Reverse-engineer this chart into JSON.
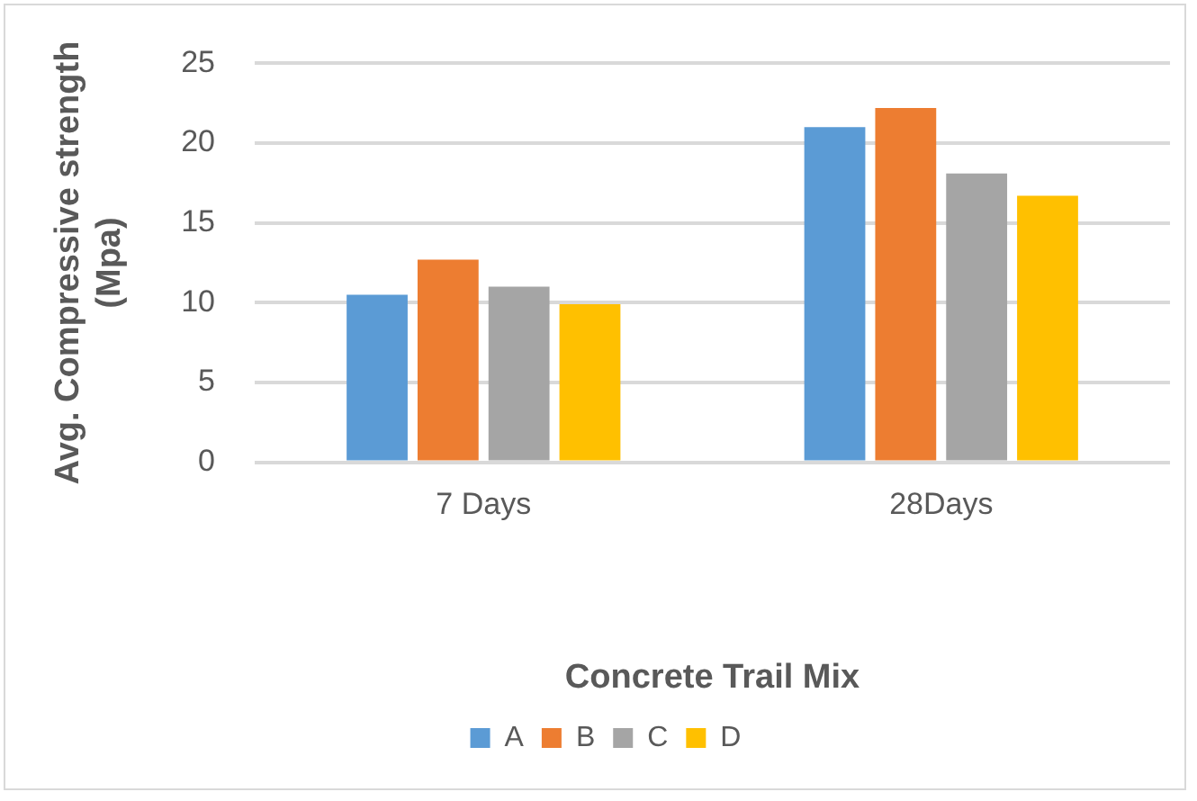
{
  "chart_data": {
    "type": "bar",
    "xlabel": "Concrete Trail Mix",
    "ylabel": "Avg. Compressive strength (Mpa)",
    "categories": [
      "7 Days",
      "28Days"
    ],
    "series": [
      {
        "name": "A",
        "color": "#5b9bd5",
        "values": [
          10.5,
          21
        ]
      },
      {
        "name": "B",
        "color": "#ed7d31",
        "values": [
          12.7,
          22.2
        ]
      },
      {
        "name": "C",
        "color": "#a5a5a5",
        "values": [
          11,
          18.1
        ]
      },
      {
        "name": "D",
        "color": "#ffc000",
        "values": [
          9.9,
          16.7
        ]
      }
    ],
    "ylim": [
      0,
      25
    ],
    "yticks": [
      0,
      5,
      10,
      15,
      20,
      25
    ],
    "grid": "y",
    "legend": "bottom"
  }
}
